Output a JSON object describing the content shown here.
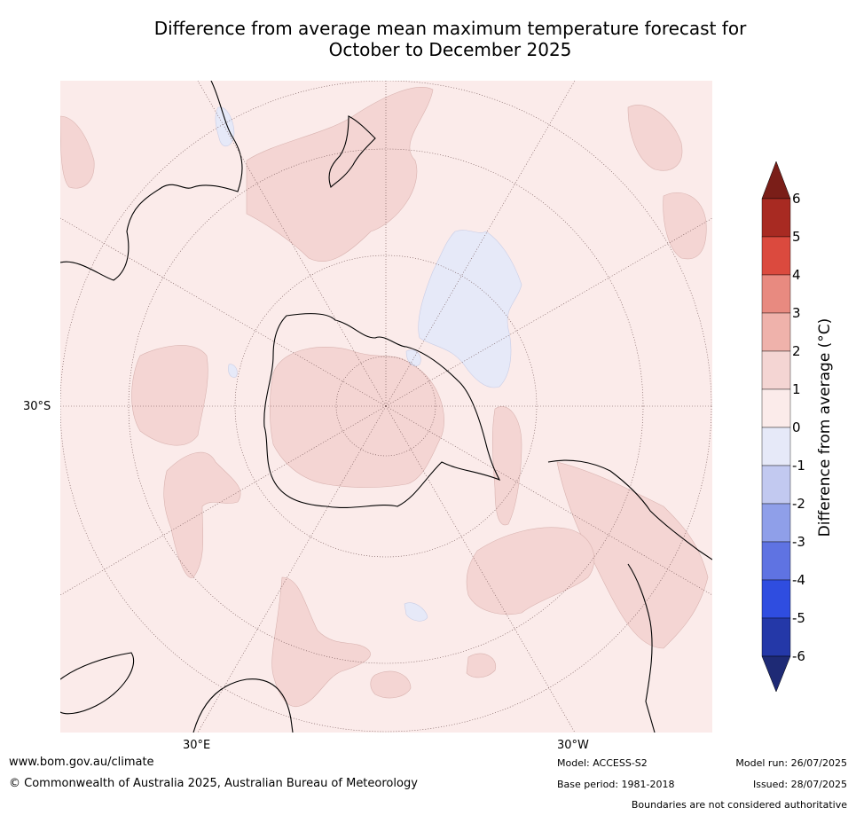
{
  "title_line1": "Difference from average mean maximum temperature forecast for",
  "title_line2": "October to December 2025",
  "axis_labels": {
    "lat": "30°S",
    "lon_east": "30°E",
    "lon_west": "30°W"
  },
  "colorbar": {
    "label": "Difference from average (°C)",
    "ticks": [
      "6",
      "5",
      "4",
      "3",
      "2",
      "1",
      "0",
      "-1",
      "-2",
      "-3",
      "-4",
      "-5",
      "-6"
    ],
    "colors_top_to_bottom": [
      "#a82a22",
      "#db4a3e",
      "#e88a80",
      "#efb2ab",
      "#f4d5d3",
      "#fbebea",
      "#e6e9f8",
      "#c2c9f0",
      "#8f9fe9",
      "#5f73e2",
      "#2f4de0",
      "#2438a8"
    ],
    "over_color": "#7a1e18",
    "under_color": "#1e2a75"
  },
  "map_colors": {
    "background": "#fbebea",
    "warm": "#f4d5d3",
    "cool": "#e6e9f8",
    "coast": "#000000",
    "grid": "#6b4c4c"
  },
  "footer": {
    "url": "www.bom.gov.au/climate",
    "copyright": "© Commonwealth of Australia 2025, Australian Bureau of Meteorology",
    "model": "Model: ACCESS-S2",
    "base_period": "Base period: 1981-2018",
    "model_run": "Model run: 26/07/2025",
    "issued": "Issued: 28/07/2025",
    "boundaries": "Boundaries are not considered authoritative"
  }
}
